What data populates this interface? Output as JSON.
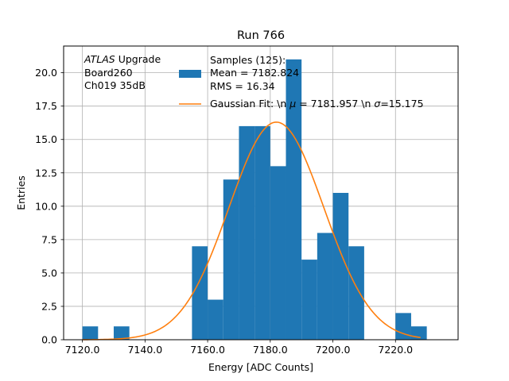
{
  "chart_data": {
    "type": "bar",
    "title": "Run 766",
    "xlabel": "Energy [ADC Counts]",
    "ylabel": "Entries",
    "xlim": [
      7114,
      7240
    ],
    "ylim": [
      0,
      22
    ],
    "xticks": [
      7120,
      7140,
      7160,
      7180,
      7200,
      7220
    ],
    "xtick_labels": [
      "7120.0",
      "7140.0",
      "7160.0",
      "7180.0",
      "7200.0",
      "7220.0"
    ],
    "yticks": [
      0,
      2.5,
      5,
      7.5,
      10,
      12.5,
      15,
      17.5,
      20
    ],
    "ytick_labels": [
      "0.0",
      "2.5",
      "5.0",
      "7.5",
      "10.0",
      "12.5",
      "15.0",
      "17.5",
      "20.0"
    ],
    "grid": true,
    "bin_width": 5,
    "bins": [
      {
        "x0": 7120,
        "x1": 7125,
        "count": 1
      },
      {
        "x0": 7130,
        "x1": 7135,
        "count": 1
      },
      {
        "x0": 7155,
        "x1": 7160,
        "count": 7
      },
      {
        "x0": 7160,
        "x1": 7165,
        "count": 3
      },
      {
        "x0": 7165,
        "x1": 7170,
        "count": 12
      },
      {
        "x0": 7170,
        "x1": 7175,
        "count": 16
      },
      {
        "x0": 7175,
        "x1": 7180,
        "count": 16
      },
      {
        "x0": 7180,
        "x1": 7185,
        "count": 13
      },
      {
        "x0": 7185,
        "x1": 7190,
        "count": 21
      },
      {
        "x0": 7190,
        "x1": 7195,
        "count": 6
      },
      {
        "x0": 7195,
        "x1": 7200,
        "count": 8
      },
      {
        "x0": 7200,
        "x1": 7205,
        "count": 11
      },
      {
        "x0": 7205,
        "x1": 7210,
        "count": 7
      },
      {
        "x0": 7220,
        "x1": 7225,
        "count": 2
      },
      {
        "x0": 7225,
        "x1": 7230,
        "count": 1
      }
    ],
    "fit": {
      "amplitude": 16.3,
      "mu": 7181.957,
      "sigma": 15.175,
      "x_range": [
        7120,
        7228
      ]
    },
    "colors": {
      "histogram": "#1f77b4",
      "fit": "#ff7f0e",
      "grid": "#b0b0b0"
    },
    "annotation": {
      "atlas_italic": "ATLAS",
      "line1_rest": " Upgrade",
      "line2": " Board260",
      "line3": " Ch019 35dB"
    },
    "legend": {
      "location": "upper-center",
      "samples_line1": "Samples (125):",
      "samples_line2": " Mean = 7182.824",
      "samples_line3": " RMS = 16.34",
      "fit_part1": "Gaussian Fit: \\n ",
      "fit_mu_symbol": "μ",
      "fit_part2": " = 7181.957 \\n ",
      "fit_sigma_symbol": "σ",
      "fit_part3": "=15.175"
    }
  }
}
